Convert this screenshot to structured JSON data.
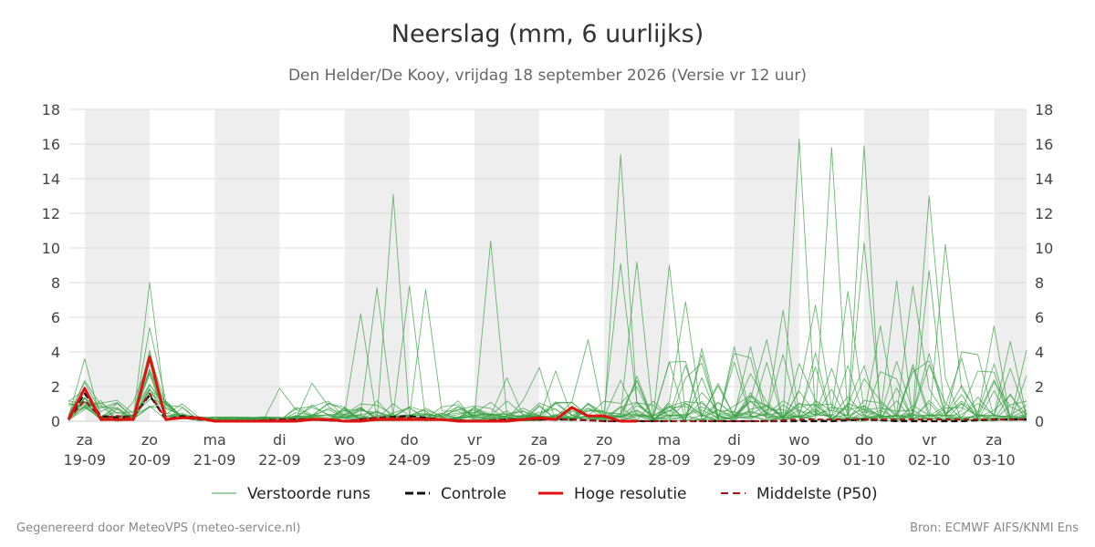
{
  "chart_data": {
    "type": "line",
    "title": "Neerslag (mm, 6 uurlijks)",
    "subtitle": "Den Helder/De Kooy, vrijdag 18 september 2026 (Versie vr 12 uur)",
    "ylim": [
      0,
      18
    ],
    "y_ticks": [
      0,
      2,
      4,
      6,
      8,
      10,
      12,
      14,
      16,
      18
    ],
    "x_range_days": [
      -0.25,
      14.5
    ],
    "x_ticks": [
      {
        "day": "za",
        "date": "19-09"
      },
      {
        "day": "zo",
        "date": "20-09"
      },
      {
        "day": "ma",
        "date": "21-09"
      },
      {
        "day": "di",
        "date": "22-09"
      },
      {
        "day": "wo",
        "date": "23-09"
      },
      {
        "day": "do",
        "date": "24-09"
      },
      {
        "day": "vr",
        "date": "25-09"
      },
      {
        "day": "za",
        "date": "26-09"
      },
      {
        "day": "zo",
        "date": "27-09"
      },
      {
        "day": "ma",
        "date": "28-09"
      },
      {
        "day": "di",
        "date": "29-09"
      },
      {
        "day": "wo",
        "date": "30-09"
      },
      {
        "day": "do",
        "date": "01-10"
      },
      {
        "day": "vr",
        "date": "02-10"
      },
      {
        "day": "za",
        "date": "03-10"
      }
    ],
    "shaded_days": [
      0,
      2,
      4,
      6,
      8,
      10,
      12,
      14
    ],
    "grid": true,
    "legend_position": "bottom",
    "colors": {
      "ensemble": "#3aa043",
      "control": "#111111",
      "high_res": "#e0120f",
      "median": "#a51515",
      "shade": "#eeeeee",
      "grid": "#dcdcdc"
    },
    "series": [
      {
        "name": "Hoge resolutie",
        "role": "high_res",
        "x": [
          -0.25,
          0,
          0.25,
          0.5,
          0.75,
          1,
          1.25,
          1.5,
          1.75,
          2,
          2.25,
          2.5,
          2.75,
          3,
          3.25,
          3.5,
          3.75,
          4,
          4.25,
          4.5,
          4.75,
          5,
          5.25,
          5.5,
          5.75,
          6,
          6.25,
          6.5,
          6.75,
          7,
          7.25,
          7.5,
          7.75,
          8,
          8.25,
          8.5
        ],
        "values": [
          0.1,
          1.9,
          0.1,
          0.1,
          0.1,
          3.7,
          0.1,
          0.2,
          0.2,
          0.0,
          0.0,
          0.0,
          0.0,
          0.0,
          0.0,
          0.1,
          0.1,
          0.0,
          0.0,
          0.1,
          0.1,
          0.1,
          0.1,
          0.1,
          0.0,
          0.0,
          0.0,
          0.0,
          0.1,
          0.2,
          0.1,
          0.8,
          0.3,
          0.3,
          0.0,
          0.0
        ]
      },
      {
        "name": "Controle",
        "role": "control",
        "x": [
          -0.25,
          0,
          0.25,
          0.5,
          0.75,
          1,
          1.25,
          1.5,
          1.75,
          2,
          2.5,
          3,
          3.5,
          4,
          4.5,
          5,
          5.5,
          6,
          6.5,
          7,
          7.5,
          8,
          8.5,
          9,
          9.5,
          10,
          10.5,
          11,
          11.5,
          12,
          12.5,
          13,
          13.5,
          14,
          14.5
        ],
        "values": [
          0.1,
          1.6,
          0.3,
          0.2,
          0.3,
          1.5,
          0.1,
          0.3,
          0.2,
          0.0,
          0.0,
          0.1,
          0.1,
          0.0,
          0.2,
          0.3,
          0.1,
          0.0,
          0.1,
          0.1,
          0.1,
          0.0,
          0.0,
          0.0,
          0.0,
          0.0,
          0.0,
          0.0,
          0.0,
          0.1,
          0.0,
          0.0,
          0.0,
          0.1,
          0.1
        ]
      },
      {
        "name": "Middelste (P50)",
        "role": "median",
        "x": [
          -0.25,
          0,
          0.25,
          0.5,
          0.75,
          1,
          1.25,
          1.5,
          1.75,
          2,
          2.5,
          3,
          3.5,
          4,
          4.5,
          5,
          5.5,
          6,
          6.5,
          7,
          7.5,
          8,
          8.5,
          9,
          9.5,
          10,
          10.5,
          11,
          11.5,
          12,
          12.5,
          13,
          13.5,
          14,
          14.5
        ],
        "values": [
          0.1,
          1.2,
          0.2,
          0.3,
          0.2,
          1.6,
          0.1,
          0.2,
          0.1,
          0.0,
          0.0,
          0.1,
          0.1,
          0.0,
          0.2,
          0.2,
          0.1,
          0.0,
          0.1,
          0.1,
          0.1,
          0.0,
          0.0,
          0.0,
          0.0,
          0.0,
          0.0,
          0.1,
          0.1,
          0.1,
          0.1,
          0.1,
          0.1,
          0.1,
          0.1
        ]
      }
    ],
    "ensemble_peaks": [
      {
        "x": 0,
        "value": 3.6
      },
      {
        "x": 1,
        "value": 8.0
      },
      {
        "x": 1,
        "value": 5.4
      },
      {
        "x": 3,
        "value": 1.9
      },
      {
        "x": 3.5,
        "value": 2.2
      },
      {
        "x": 4.25,
        "value": 6.2
      },
      {
        "x": 4.5,
        "value": 7.7
      },
      {
        "x": 4.75,
        "value": 13.1
      },
      {
        "x": 5,
        "value": 7.8
      },
      {
        "x": 5.25,
        "value": 7.6
      },
      {
        "x": 6.25,
        "value": 10.4
      },
      {
        "x": 6.5,
        "value": 2.5
      },
      {
        "x": 7,
        "value": 3.1
      },
      {
        "x": 7.25,
        "value": 2.9
      },
      {
        "x": 7.75,
        "value": 4.7
      },
      {
        "x": 8.25,
        "value": 15.4
      },
      {
        "x": 8.25,
        "value": 9.1
      },
      {
        "x": 8.5,
        "value": 9.2
      },
      {
        "x": 9,
        "value": 9.0
      },
      {
        "x": 9.25,
        "value": 6.9
      },
      {
        "x": 9.5,
        "value": 4.2
      },
      {
        "x": 10,
        "value": 4.3
      },
      {
        "x": 10.25,
        "value": 4.3
      },
      {
        "x": 10.5,
        "value": 4.7
      },
      {
        "x": 10.75,
        "value": 6.4
      },
      {
        "x": 11,
        "value": 16.3
      },
      {
        "x": 11.25,
        "value": 6.7
      },
      {
        "x": 11.5,
        "value": 15.8
      },
      {
        "x": 11.75,
        "value": 7.5
      },
      {
        "x": 12,
        "value": 15.9
      },
      {
        "x": 12,
        "value": 10.3
      },
      {
        "x": 12.25,
        "value": 5.5
      },
      {
        "x": 12.5,
        "value": 8.1
      },
      {
        "x": 12.75,
        "value": 7.8
      },
      {
        "x": 13,
        "value": 13.0
      },
      {
        "x": 13,
        "value": 8.7
      },
      {
        "x": 13.25,
        "value": 10.2
      },
      {
        "x": 13.5,
        "value": 4.0
      },
      {
        "x": 14,
        "value": 5.5
      },
      {
        "x": 14.25,
        "value": 4.6
      },
      {
        "x": 14.5,
        "value": 4.1
      }
    ]
  },
  "legend": [
    {
      "label": "Verstoorde runs",
      "role": "ensemble"
    },
    {
      "label": "Controle",
      "role": "control"
    },
    {
      "label": "Hoge resolutie",
      "role": "high_res"
    },
    {
      "label": "Middelste (P50)",
      "role": "median"
    }
  ],
  "footer": {
    "left": "Gegenereerd door MeteoVPS (meteo-service.nl)",
    "right": "Bron: ECMWF AIFS/KNMI Ens"
  }
}
